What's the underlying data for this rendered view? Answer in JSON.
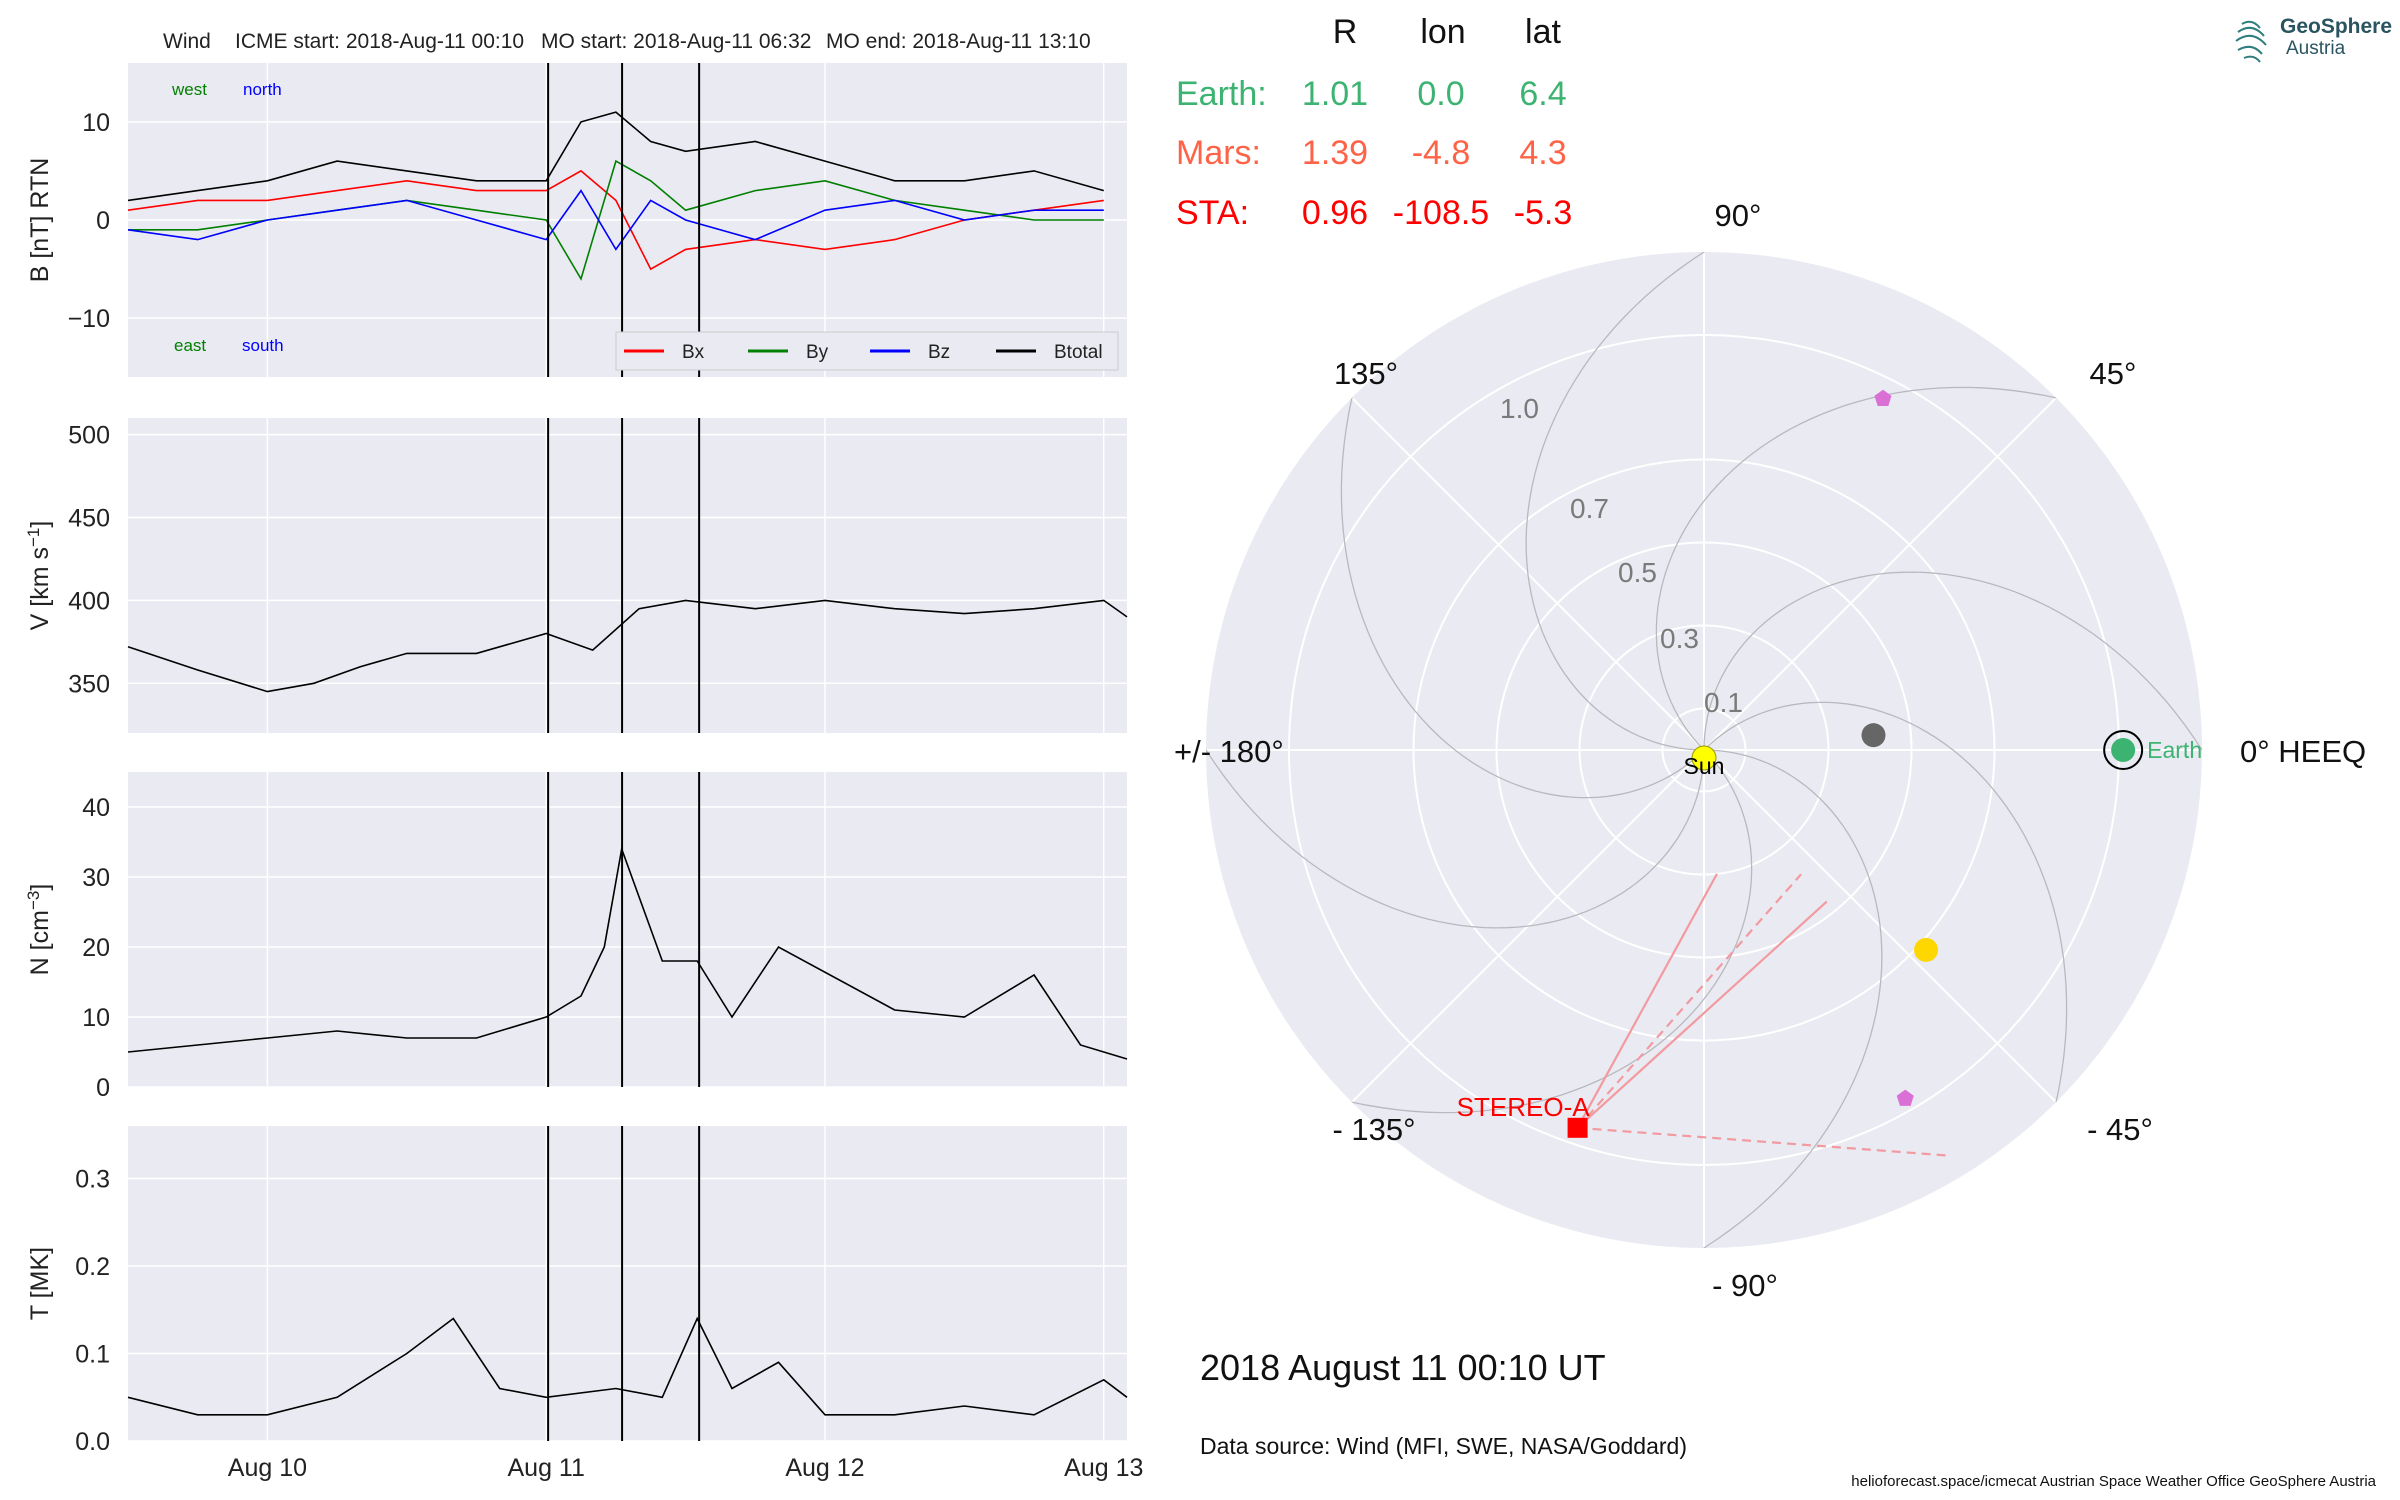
{
  "header": {
    "spacecraft": "Wind",
    "icme_start": "ICME start: 2018-Aug-11 00:10",
    "mo_start": "MO start: 2018-Aug-11 06:32",
    "mo_end": "MO end: 2018-Aug-11 13:10"
  },
  "logo": {
    "line1": "GeoSphere",
    "line2": "Austria"
  },
  "position_table": {
    "columns": [
      "R",
      "lon",
      "lat"
    ],
    "rows": [
      {
        "name": "Earth:",
        "R": "1.01",
        "lon": "0.0",
        "lat": "6.4",
        "color": "#3cb371"
      },
      {
        "name": "Mars:",
        "R": "1.39",
        "lon": "-4.8",
        "lat": "4.3",
        "color": "#ff6347"
      },
      {
        "name": "STA:",
        "R": "0.96",
        "lon": "-108.5",
        "lat": "-5.3",
        "color": "#ff0000"
      }
    ]
  },
  "datetime": "2018 August 11  00:10 UT",
  "data_source": "Data source: Wind (MFI, SWE, NASA/Goddard)",
  "footer": "helioforecast.space/icmecat   Austrian Space Weather Office   GeoSphere Austria",
  "chart_data": [
    {
      "type": "line",
      "ylabel": "B [nT] RTN",
      "ylim": [
        -16,
        16
      ],
      "yticks": [
        -10,
        0,
        10
      ],
      "x_range": [
        "2018-08-09 12:00",
        "2018-08-13 02:00"
      ],
      "x_ticks": [
        "Aug 10",
        "Aug 11",
        "Aug 12",
        "Aug 13"
      ],
      "event_lines": [
        "2018-08-11 00:10",
        "2018-08-11 06:32",
        "2018-08-11 13:10"
      ],
      "annotations": {
        "west": "west",
        "north": "north",
        "east": "east",
        "south": "south"
      },
      "legend": "bottom-right",
      "series": [
        {
          "name": "Bx",
          "color": "#ff0000",
          "x": [
            "08-09 12:00",
            "08-09 18:00",
            "08-10 00:00",
            "08-10 06:00",
            "08-10 12:00",
            "08-10 18:00",
            "08-11 00:00",
            "08-11 03:00",
            "08-11 06:00",
            "08-11 09:00",
            "08-11 12:00",
            "08-11 18:00",
            "08-12 00:00",
            "08-12 06:00",
            "08-12 12:00",
            "08-12 18:00",
            "08-13 00:00"
          ],
          "y": [
            1,
            2,
            2,
            3,
            4,
            3,
            3,
            5,
            2,
            -5,
            -3,
            -2,
            -3,
            -2,
            0,
            1,
            2
          ]
        },
        {
          "name": "By",
          "color": "#008000",
          "x": [
            "08-09 12:00",
            "08-09 18:00",
            "08-10 00:00",
            "08-10 06:00",
            "08-10 12:00",
            "08-10 18:00",
            "08-11 00:00",
            "08-11 03:00",
            "08-11 06:00",
            "08-11 09:00",
            "08-11 12:00",
            "08-11 18:00",
            "08-12 00:00",
            "08-12 06:00",
            "08-12 12:00",
            "08-12 18:00",
            "08-13 00:00"
          ],
          "y": [
            -1,
            -1,
            0,
            1,
            2,
            1,
            0,
            -6,
            6,
            4,
            1,
            3,
            4,
            2,
            1,
            0,
            0
          ]
        },
        {
          "name": "Bz",
          "color": "#0000ff",
          "x": [
            "08-09 12:00",
            "08-09 18:00",
            "08-10 00:00",
            "08-10 06:00",
            "08-10 12:00",
            "08-10 18:00",
            "08-11 00:00",
            "08-11 03:00",
            "08-11 06:00",
            "08-11 09:00",
            "08-11 12:00",
            "08-11 18:00",
            "08-12 00:00",
            "08-12 06:00",
            "08-12 12:00",
            "08-12 18:00",
            "08-13 00:00"
          ],
          "y": [
            -1,
            -2,
            0,
            1,
            2,
            0,
            -2,
            3,
            -3,
            2,
            0,
            -2,
            1,
            2,
            0,
            1,
            1
          ]
        },
        {
          "name": "Btotal",
          "color": "#000000",
          "x": [
            "08-09 12:00",
            "08-09 18:00",
            "08-10 00:00",
            "08-10 06:00",
            "08-10 12:00",
            "08-10 18:00",
            "08-11 00:00",
            "08-11 03:00",
            "08-11 06:00",
            "08-11 09:00",
            "08-11 12:00",
            "08-11 18:00",
            "08-12 00:00",
            "08-12 06:00",
            "08-12 12:00",
            "08-12 18:00",
            "08-13 00:00"
          ],
          "y": [
            2,
            3,
            4,
            6,
            5,
            4,
            4,
            10,
            11,
            8,
            7,
            8,
            6,
            4,
            4,
            5,
            3
          ]
        }
      ]
    },
    {
      "type": "line",
      "ylabel": "V [km s^-1]",
      "ylim": [
        320,
        510
      ],
      "yticks": [
        350,
        400,
        450,
        500
      ],
      "series": [
        {
          "name": "",
          "color": "#000000",
          "x": [
            "08-09 12:00",
            "08-09 18:00",
            "08-10 00:00",
            "08-10 04:00",
            "08-10 08:00",
            "08-10 12:00",
            "08-10 18:00",
            "08-11 00:00",
            "08-11 04:00",
            "08-11 08:00",
            "08-11 12:00",
            "08-11 18:00",
            "08-12 00:00",
            "08-12 06:00",
            "08-12 12:00",
            "08-12 18:00",
            "08-13 00:00",
            "08-13 02:00"
          ],
          "y": [
            372,
            358,
            345,
            350,
            360,
            368,
            368,
            380,
            370,
            395,
            400,
            395,
            400,
            395,
            392,
            395,
            400,
            390
          ]
        }
      ]
    },
    {
      "type": "line",
      "ylabel": "N [cm^-3]",
      "ylim": [
        0,
        45
      ],
      "yticks": [
        0,
        10,
        20,
        30,
        40
      ],
      "series": [
        {
          "name": "",
          "color": "#000000",
          "x": [
            "08-09 12:00",
            "08-09 18:00",
            "08-10 00:00",
            "08-10 06:00",
            "08-10 12:00",
            "08-10 18:00",
            "08-11 00:00",
            "08-11 03:00",
            "08-11 05:00",
            "08-11 06:30",
            "08-11 10:00",
            "08-11 13:00",
            "08-11 16:00",
            "08-11 20:00",
            "08-12 06:00",
            "08-12 12:00",
            "08-12 18:00",
            "08-12 22:00",
            "08-13 02:00"
          ],
          "y": [
            5,
            6,
            7,
            8,
            7,
            7,
            10,
            13,
            20,
            34,
            18,
            18,
            10,
            20,
            11,
            10,
            16,
            6,
            4
          ]
        }
      ]
    },
    {
      "type": "line",
      "ylabel": "T [MK]",
      "ylim": [
        0,
        0.36
      ],
      "yticks": [
        0.0,
        0.1,
        0.2,
        0.3
      ],
      "x_ticks": [
        "Aug 10",
        "Aug 11",
        "Aug 12",
        "Aug 13"
      ],
      "series": [
        {
          "name": "",
          "color": "#000000",
          "x": [
            "08-09 12:00",
            "08-09 18:00",
            "08-10 00:00",
            "08-10 06:00",
            "08-10 12:00",
            "08-10 16:00",
            "08-10 20:00",
            "08-11 00:00",
            "08-11 06:00",
            "08-11 10:00",
            "08-11 13:00",
            "08-11 16:00",
            "08-11 20:00",
            "08-12 00:00",
            "08-12 06:00",
            "08-12 12:00",
            "08-12 18:00",
            "08-13 00:00",
            "08-13 02:00"
          ],
          "y": [
            0.05,
            0.03,
            0.03,
            0.05,
            0.1,
            0.14,
            0.06,
            0.05,
            0.06,
            0.05,
            0.14,
            0.06,
            0.09,
            0.03,
            0.03,
            0.04,
            0.03,
            0.07,
            0.05
          ]
        }
      ]
    },
    {
      "type": "scatter",
      "projection": "polar",
      "r_ticks": [
        "0.1",
        "0.3",
        "0.5",
        "0.7",
        "1.0"
      ],
      "r_values": [
        0.1,
        0.3,
        0.5,
        0.7,
        1.0
      ],
      "r_max": 1.2,
      "angle_labels": {
        "a0": "0° HEEQ",
        "a45": "45°",
        "a90": "90°",
        "a135": "135°",
        "a180": "+/- 180°",
        "am135": "- 135°",
        "am90": "- 90°",
        "am45": "- 45°"
      },
      "bodies": [
        {
          "name": "Sun",
          "r": 0.0,
          "lon": 0,
          "color": "#ffff00",
          "marker": "circle"
        },
        {
          "name": "Earth",
          "r": 1.01,
          "lon": 0.0,
          "color": "#3cb371",
          "marker": "circle"
        },
        {
          "name": "STEREO-A",
          "label": "STEREO-A",
          "r": 0.96,
          "lon": -108.5,
          "color": "#ff0000",
          "marker": "square"
        }
      ],
      "other_markers": [
        {
          "r": 0.41,
          "lon": 5,
          "color": "#666666",
          "marker": "circle"
        },
        {
          "r": 0.72,
          "lon": -42,
          "color": "#ffd700",
          "marker": "circle"
        },
        {
          "r": 0.95,
          "lon": 63,
          "color": "#da70d6",
          "marker": "pentagon"
        },
        {
          "r": 0.97,
          "lon": -60,
          "color": "#da70d6",
          "marker": "pentagon"
        }
      ],
      "fov_lines": [
        {
          "r": 0.3,
          "lon": -84,
          "style": "solid"
        },
        {
          "r": 0.47,
          "lon": -51,
          "style": "solid"
        },
        {
          "r": 0.38,
          "lon": -52,
          "style": "dashed"
        },
        {
          "r": 1.14,
          "lon": -59,
          "style": "dashed"
        }
      ]
    }
  ]
}
